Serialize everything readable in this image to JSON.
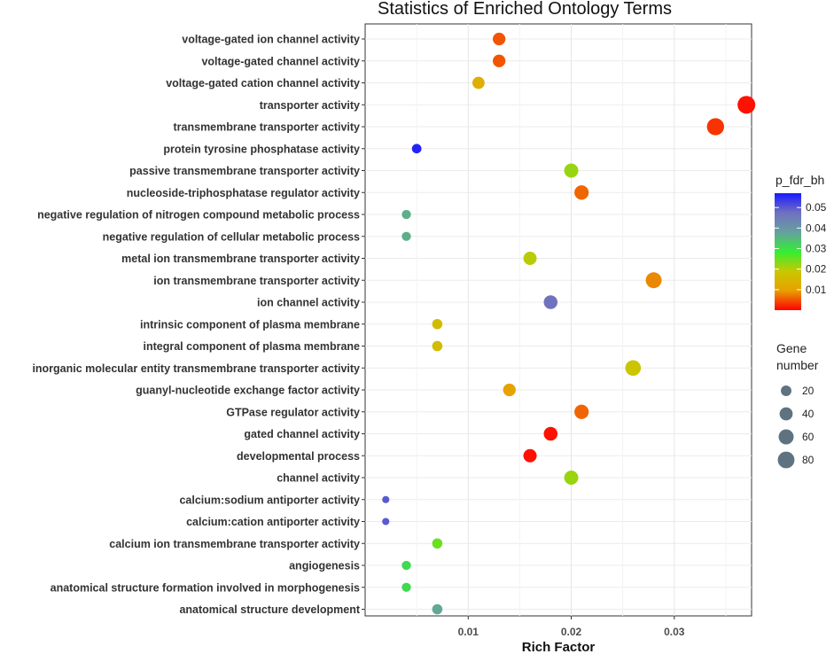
{
  "chart_data": {
    "type": "scatter",
    "title": "Statistics of Enriched Ontology Terms",
    "xlabel": "Rich Factor",
    "ylabel": "",
    "xlim": [
      0.0,
      0.0375
    ],
    "xticks": [
      0.01,
      0.02,
      0.03
    ],
    "xtick_labels": [
      "0.01",
      "0.02",
      "0.03"
    ],
    "grid": true,
    "points": [
      {
        "term": "voltage-gated ion channel activity",
        "x": 0.013,
        "p_fdr_bh": 0.005,
        "gene_number": 36
      },
      {
        "term": "voltage-gated channel activity",
        "x": 0.013,
        "p_fdr_bh": 0.005,
        "gene_number": 36
      },
      {
        "term": "voltage-gated cation channel activity",
        "x": 0.011,
        "p_fdr_bh": 0.013,
        "gene_number": 32
      },
      {
        "term": "transporter activity",
        "x": 0.037,
        "p_fdr_bh": 0.001,
        "gene_number": 94
      },
      {
        "term": "transmembrane transporter activity",
        "x": 0.034,
        "p_fdr_bh": 0.003,
        "gene_number": 86
      },
      {
        "term": "protein tyrosine phosphatase activity",
        "x": 0.005,
        "p_fdr_bh": 0.056,
        "gene_number": 14
      },
      {
        "term": "passive transmembrane transporter activity",
        "x": 0.02,
        "p_fdr_bh": 0.022,
        "gene_number": 50
      },
      {
        "term": "nucleoside-triphosphatase regulator activity",
        "x": 0.021,
        "p_fdr_bh": 0.006,
        "gene_number": 52
      },
      {
        "term": "negative regulation of nitrogen compound metabolic process",
        "x": 0.004,
        "p_fdr_bh": 0.036,
        "gene_number": 12
      },
      {
        "term": "negative regulation of cellular metabolic process",
        "x": 0.004,
        "p_fdr_bh": 0.036,
        "gene_number": 12
      },
      {
        "term": "metal ion transmembrane transporter activity",
        "x": 0.016,
        "p_fdr_bh": 0.02,
        "gene_number": 42
      },
      {
        "term": "ion transmembrane transporter activity",
        "x": 0.028,
        "p_fdr_bh": 0.008,
        "gene_number": 70
      },
      {
        "term": "ion channel activity",
        "x": 0.018,
        "p_fdr_bh": 0.047,
        "gene_number": 46
      },
      {
        "term": "intrinsic component of plasma membrane",
        "x": 0.007,
        "p_fdr_bh": 0.016,
        "gene_number": 18
      },
      {
        "term": "integral component of plasma membrane",
        "x": 0.007,
        "p_fdr_bh": 0.016,
        "gene_number": 18
      },
      {
        "term": "inorganic molecular entity transmembrane transporter activity",
        "x": 0.026,
        "p_fdr_bh": 0.018,
        "gene_number": 66
      },
      {
        "term": "guanyl-nucleotide exchange factor activity",
        "x": 0.014,
        "p_fdr_bh": 0.01,
        "gene_number": 36
      },
      {
        "term": "GTPase regulator activity",
        "x": 0.021,
        "p_fdr_bh": 0.006,
        "gene_number": 52
      },
      {
        "term": "gated channel activity",
        "x": 0.018,
        "p_fdr_bh": 0.001,
        "gene_number": 46
      },
      {
        "term": "developmental process",
        "x": 0.016,
        "p_fdr_bh": 0.001,
        "gene_number": 42
      },
      {
        "term": "channel activity",
        "x": 0.02,
        "p_fdr_bh": 0.022,
        "gene_number": 50
      },
      {
        "term": "calcium:sodium antiporter activity",
        "x": 0.002,
        "p_fdr_bh": 0.05,
        "gene_number": 4
      },
      {
        "term": "calcium:cation antiporter activity",
        "x": 0.002,
        "p_fdr_bh": 0.05,
        "gene_number": 4
      },
      {
        "term": "calcium ion transmembrane transporter activity",
        "x": 0.007,
        "p_fdr_bh": 0.025,
        "gene_number": 18
      },
      {
        "term": "angiogenesis",
        "x": 0.004,
        "p_fdr_bh": 0.031,
        "gene_number": 12
      },
      {
        "term": "anatomical structure formation involved in morphogenesis",
        "x": 0.004,
        "p_fdr_bh": 0.031,
        "gene_number": 12
      },
      {
        "term": "anatomical structure development",
        "x": 0.007,
        "p_fdr_bh": 0.037,
        "gene_number": 18
      }
    ],
    "color_legend": {
      "title": "p_fdr_bh",
      "min": 0.0,
      "max": 0.057,
      "ticks": [
        "0.05",
        "0.04",
        "0.03",
        "0.02",
        "0.01"
      ],
      "tick_values": [
        0.05,
        0.04,
        0.03,
        0.02,
        0.01
      ],
      "gradient_colors": [
        "#ff0000",
        "#e8a000",
        "#c8c800",
        "#33ee33",
        "#66a0a0",
        "#7070c0",
        "#1a1aff"
      ],
      "placement": "right"
    },
    "size_legend": {
      "title_line1": "Gene",
      "title_line2": "number",
      "values": [
        20,
        40,
        60,
        80
      ],
      "labels": [
        "20",
        "40",
        "60",
        "80"
      ],
      "placement": "right"
    },
    "point_color_neutral": "#5f7280"
  }
}
